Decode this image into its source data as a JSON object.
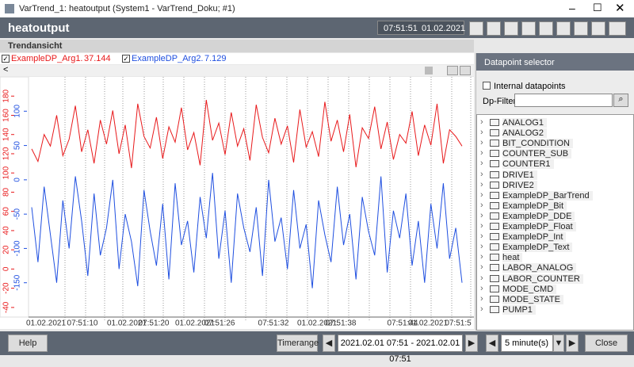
{
  "window": {
    "title": "VarTrend_1: heatoutput (System1 - VarTrend_Doku; #1)"
  },
  "header": {
    "title": "heatoutput",
    "time": "07:51:51",
    "date": "01.02.2021"
  },
  "trend": {
    "title": "Trendansicht"
  },
  "chart_data": {
    "type": "line",
    "series": [
      {
        "name": "ExampleDP_Arg1.",
        "color": "#e8191b",
        "current_value": 37.144,
        "values": [
          125,
          112,
          140,
          128,
          160,
          118,
          135,
          170,
          122,
          145,
          110,
          155,
          130,
          165,
          120,
          150,
          105,
          172,
          138,
          126,
          158,
          115,
          148,
          132,
          168,
          124,
          142,
          108,
          176,
          134,
          152,
          119,
          163,
          128,
          146,
          113,
          171,
          137,
          121,
          157,
          130,
          149,
          111,
          166,
          127,
          143,
          117,
          174,
          133,
          155,
          122,
          161,
          106,
          147,
          136,
          169,
          125,
          153,
          114,
          140,
          131,
          164,
          118,
          150,
          129,
          172,
          110,
          145,
          138,
          128
        ]
      },
      {
        "name": "ExampleDP_Arg2.",
        "color": "#1f4fe0",
        "current_value": 7.129,
        "axis": "y2",
        "values": [
          -40,
          -120,
          -10,
          -80,
          -150,
          -30,
          -100,
          5,
          -60,
          -140,
          -20,
          -110,
          -70,
          0,
          -130,
          -50,
          -90,
          -155,
          -15,
          -75,
          -125,
          -35,
          -145,
          -5,
          -95,
          -60,
          -135,
          -25,
          -85,
          10,
          -115,
          -45,
          -150,
          -20,
          -70,
          -105,
          -40,
          -140,
          0,
          -90,
          -55,
          -130,
          -15,
          -100,
          -65,
          -158,
          -30,
          -80,
          -120,
          -10,
          -95,
          -50,
          -145,
          -25,
          -75,
          -110,
          5,
          -135,
          -45,
          -85,
          -20,
          -125,
          -60,
          -150,
          -35,
          -100,
          -5,
          -115,
          -70,
          -150
        ]
      }
    ],
    "ylim": [
      -50,
      200
    ],
    "yticks": [
      -40,
      -20,
      0,
      20,
      40,
      60,
      80,
      100,
      120,
      140,
      160,
      180
    ],
    "y2lim": [
      -200,
      150
    ],
    "y2ticks": [
      -150,
      -100,
      -50,
      0,
      50,
      100
    ],
    "x_labels": [
      "01.02.2021",
      "07:51:10",
      "01.02.2021",
      "07:51:20",
      "01.02.2021",
      "07:51:26",
      "07:51:32",
      "01.02.2021",
      "07:51:38",
      "07:51:44",
      "01.02.2021",
      "07:51:5"
    ]
  },
  "selector": {
    "title": "Datapoint selector",
    "internal_label": "Internal datapoints",
    "filter_label": "Dp-Filter:",
    "items": [
      "ANALOG1",
      "ANALOG2",
      "BIT_CONDITION",
      "COUNTER_SUB",
      "COUNTER1",
      "DRIVE1",
      "DRIVE2",
      "ExampleDP_BarTrend",
      "ExampleDP_Bit",
      "ExampleDP_DDE",
      "ExampleDP_Float",
      "ExampleDP_Int",
      "ExampleDP_Text",
      "heat",
      "LABOR_ANALOG",
      "LABOR_COUNTER",
      "MODE_CMD",
      "MODE_STATE",
      "PUMP1"
    ]
  },
  "footer": {
    "help": "Help",
    "timerange": "Timerange",
    "range": "2021.02.01 07:51 - 2021.02.01 07:51",
    "interval": "5 minute(s)",
    "close": "Close"
  }
}
